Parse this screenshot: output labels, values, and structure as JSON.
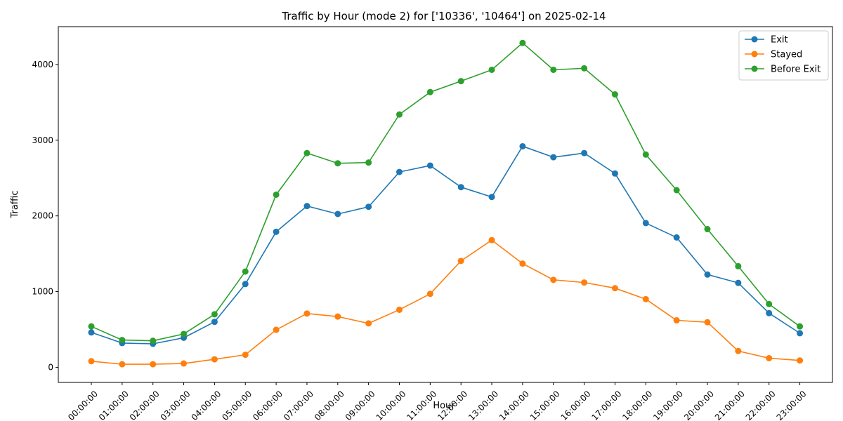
{
  "chart_data": {
    "type": "line",
    "title": "Traffic by Hour (mode 2) for ['10336', '10464'] on 2025-02-14",
    "xlabel": "Hour",
    "ylabel": "Traffic",
    "categories": [
      "00:00:00",
      "01:00:00",
      "02:00:00",
      "03:00:00",
      "04:00:00",
      "05:00:00",
      "06:00:00",
      "07:00:00",
      "08:00:00",
      "09:00:00",
      "10:00:00",
      "11:00:00",
      "12:00:00",
      "13:00:00",
      "14:00:00",
      "15:00:00",
      "16:00:00",
      "17:00:00",
      "18:00:00",
      "19:00:00",
      "20:00:00",
      "21:00:00",
      "22:00:00",
      "23:00:00"
    ],
    "ylim": [
      -200,
      4500
    ],
    "yticks": [
      0,
      1000,
      2000,
      3000,
      4000
    ],
    "grid": false,
    "legend_position": "top-right",
    "series": [
      {
        "name": "Exit",
        "color": "#1f77b4",
        "values": [
          460,
          320,
          310,
          390,
          600,
          1100,
          1790,
          2130,
          2025,
          2120,
          2580,
          2665,
          2380,
          2250,
          2920,
          2775,
          2830,
          2560,
          1905,
          1715,
          1225,
          1115,
          715,
          450
        ]
      },
      {
        "name": "Stayed",
        "color": "#ff7f0e",
        "values": [
          80,
          40,
          40,
          50,
          105,
          165,
          495,
          710,
          670,
          580,
          760,
          970,
          1405,
          1680,
          1370,
          1155,
          1120,
          1045,
          900,
          620,
          595,
          215,
          120,
          90
        ]
      },
      {
        "name": "Before Exit",
        "color": "#2ca02c",
        "values": [
          540,
          360,
          350,
          440,
          700,
          1265,
          2280,
          2830,
          2695,
          2705,
          3340,
          3635,
          3780,
          3930,
          4285,
          3930,
          3950,
          3605,
          2810,
          2340,
          1825,
          1335,
          835,
          540
        ]
      }
    ]
  }
}
